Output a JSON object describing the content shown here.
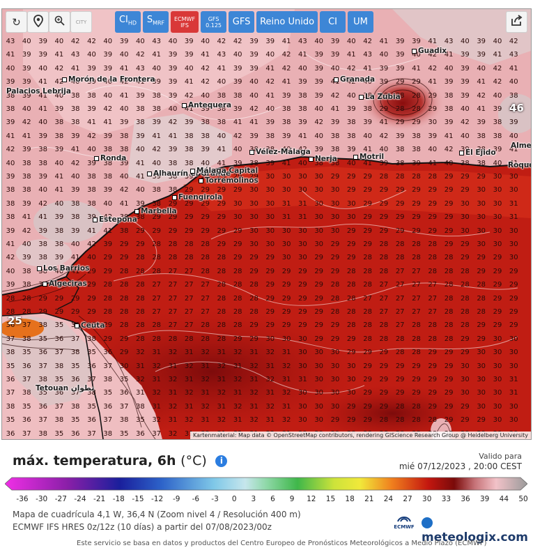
{
  "toolbar": {
    "tools": [
      {
        "icon": "refresh-icon",
        "glyph": "↻"
      },
      {
        "icon": "location-pin-icon",
        "glyph": "⚲"
      },
      {
        "icon": "zoom-icon",
        "glyph": "🔍"
      },
      {
        "icon": "city-toggle-icon",
        "glyph": "CITY"
      }
    ],
    "models": [
      {
        "label": "CI",
        "sub": "HD",
        "active": false
      },
      {
        "label": "S",
        "sub": "MRF",
        "active": false
      },
      {
        "label": "ECMWF",
        "sub2": "IFS",
        "active": true
      },
      {
        "label": "GFS",
        "sub2": "0.125",
        "active": false
      },
      {
        "label": "GFS",
        "active": false
      },
      {
        "label": "Reino Unido",
        "active": false
      },
      {
        "label": "CI",
        "active": false
      },
      {
        "label": "UM",
        "active": false
      }
    ],
    "share_icon": "share-icon"
  },
  "map": {
    "attribution": "Kartenmaterial: Map data © OpenStreetMap contributors, rendering GIScience Research Group @ Heidelberg University",
    "cities": [
      {
        "name": "Guadix"
      },
      {
        "name": "Morón de la Frontera"
      },
      {
        "name": "Granada"
      },
      {
        "name": "La Zubia"
      },
      {
        "name": "Antequera"
      },
      {
        "name": "Palacios Lebrija"
      },
      {
        "name": "Ronda"
      },
      {
        "name": "Vélez-Málaga"
      },
      {
        "name": "Nerja"
      },
      {
        "name": "Motril"
      },
      {
        "name": "El Ejido"
      },
      {
        "name": "Alhaurín el Grande"
      },
      {
        "name": "Málaga Capital"
      },
      {
        "name": "Torremolinos"
      },
      {
        "name": "Fuengirola"
      },
      {
        "name": "Marbella"
      },
      {
        "name": "Estepona"
      },
      {
        "name": "Los Barrios"
      },
      {
        "name": "Algeciras"
      },
      {
        "name": "Ceuta"
      },
      {
        "name": "Tetouan تطوان"
      },
      {
        "name": "Roquetas de Mar"
      },
      {
        "name": "Almería"
      }
    ],
    "callouts": [
      {
        "value": "25",
        "where": "left-edge"
      },
      {
        "value": "46",
        "where": "right-edge"
      }
    ]
  },
  "legend": {
    "title": "máx. temperatura, 6h",
    "unit": "(°C)",
    "valid_label": "Valido para",
    "valid_date": "mié 07/12/2023 , 20:00 CEST",
    "ticks": [
      "-36",
      "-30",
      "-27",
      "-24",
      "-21",
      "-18",
      "-15",
      "-12",
      "-9",
      "-6",
      "-3",
      "0",
      "3",
      "6",
      "9",
      "12",
      "15",
      "18",
      "21",
      "24",
      "27",
      "30",
      "33",
      "36",
      "39",
      "44",
      "50"
    ],
    "meta1": "Mapa de cuadrícula 4,1 W, 36,4 N (Zoom nivel 4 / Resolución 400 m)",
    "meta2": "ECMWF IFS HRES 0z/12z (10 días) a partir del 07/08/2023/00z",
    "footer": "Este servicio se basa en datos y productos del Centro Europeo de Pronósticos Meteorológicos a Medio Plazo (ECMWF)",
    "ecmwf_logo": "ECMWF",
    "brand": "meteologix.com",
    "colors": {
      "cold_end": "#e13ee0",
      "deep_blue": "#1a1f9c",
      "cyan": "#7fc8e8",
      "green": "#3fb74a",
      "yellow": "#f1e83a",
      "orange": "#f0801e",
      "red": "#c4170f",
      "dark_red": "#7a0a0a",
      "pink": "#f2c2c8",
      "grey": "#bcbcbc"
    }
  }
}
